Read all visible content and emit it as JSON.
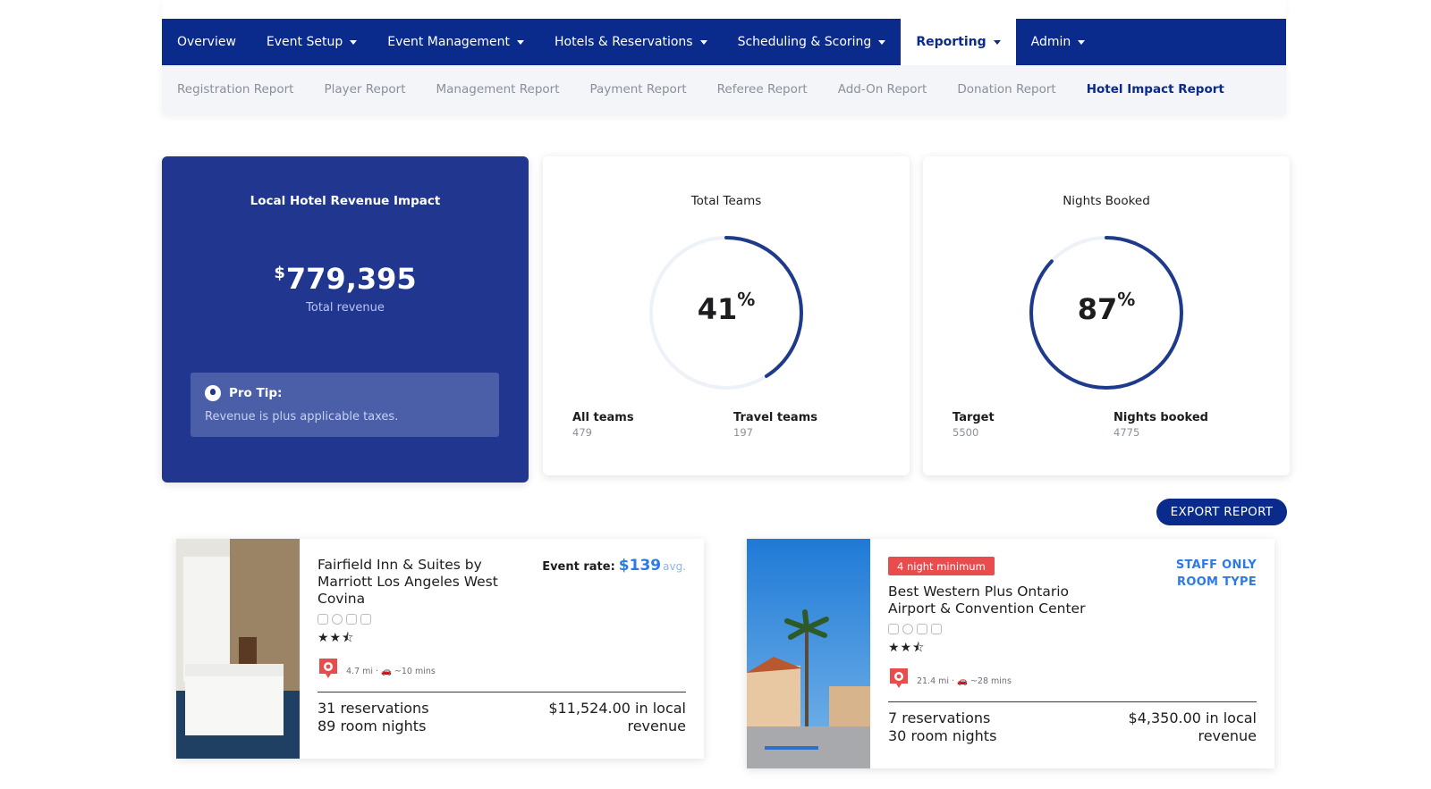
{
  "nav": {
    "items": [
      {
        "label": "Overview",
        "dropdown": false,
        "active": false
      },
      {
        "label": "Event Setup",
        "dropdown": true,
        "active": false
      },
      {
        "label": "Event Management",
        "dropdown": true,
        "active": false
      },
      {
        "label": "Hotels & Reservations",
        "dropdown": true,
        "active": false
      },
      {
        "label": "Scheduling & Scoring",
        "dropdown": true,
        "active": false
      },
      {
        "label": "Reporting",
        "dropdown": true,
        "active": true
      },
      {
        "label": "Admin",
        "dropdown": true,
        "active": false
      }
    ]
  },
  "subnav": {
    "items": [
      {
        "label": "Registration Report",
        "active": false
      },
      {
        "label": "Player Report",
        "active": false
      },
      {
        "label": "Management Report",
        "active": false
      },
      {
        "label": "Payment Report",
        "active": false
      },
      {
        "label": "Referee Report",
        "active": false
      },
      {
        "label": "Add-On Report",
        "active": false
      },
      {
        "label": "Donation Report",
        "active": false
      },
      {
        "label": "Hotel Impact Report",
        "active": true
      }
    ]
  },
  "revenue": {
    "title": "Local Hotel Revenue Impact",
    "currency": "$",
    "amount": "779,395",
    "subtitle": "Total revenue",
    "tip_title": "Pro Tip:",
    "tip_text": "Revenue is plus applicable taxes."
  },
  "teams": {
    "title": "Total Teams",
    "percent": 41,
    "percent_sign": "%",
    "left_label": "All teams",
    "left_value": "479",
    "right_label": "Travel teams",
    "right_value": "197"
  },
  "nights": {
    "title": "Nights Booked",
    "percent": 87,
    "percent_sign": "%",
    "left_label": "Target",
    "left_value": "5500",
    "right_label": "Nights booked",
    "right_value": "4775"
  },
  "export_label": "EXPORT REPORT",
  "hotels": [
    {
      "name": "Fairfield Inn & Suites by Marriott Los Angeles West Covina",
      "rate_label": "Event rate:",
      "rate_price": "$139",
      "rate_avg": "avg.",
      "stars": "★★⯪",
      "distance": "4.7 mi · 🚗 ~10 mins",
      "reservations": "31 reservations",
      "room_nights": "89 room nights",
      "local_revenue": "$11,524.00 in local revenue"
    },
    {
      "badge": "4 night minimum",
      "name": "Best Western Plus Ontario Airport & Convention Center",
      "staff_label": "STAFF ONLY ROOM TYPE",
      "stars": "★★⯪",
      "distance": "21.4 mi · 🚗 ~28 mins",
      "reservations": "7 reservations",
      "room_nights": "30 room nights",
      "local_revenue": "$4,350.00 in local revenue"
    }
  ],
  "colors": {
    "primary": "#0a2a8c",
    "revenue_card": "#21378f",
    "ring": "#1e3a8a",
    "accent_blue": "#2c7be5",
    "badge_red": "#e84c4c"
  }
}
